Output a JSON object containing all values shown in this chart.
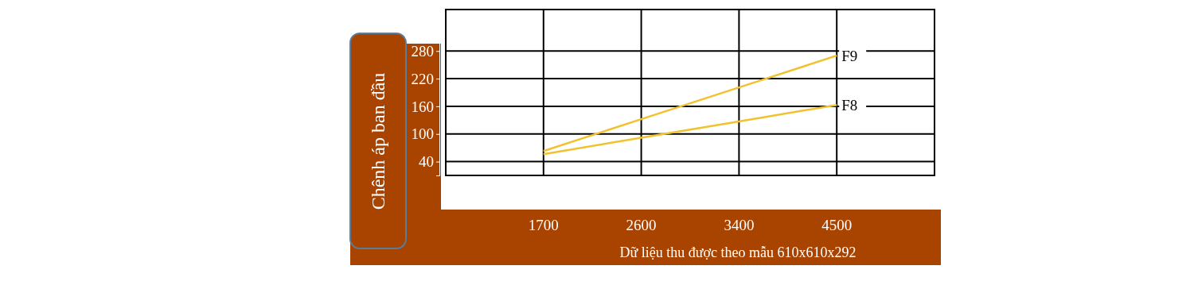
{
  "chart_data": {
    "type": "line",
    "xlabel": "Dữ liệu thu được theo mẫu 610x610x292",
    "ylabel": "Chênh áp ban đầu",
    "categories": [
      "1700",
      "2600",
      "3400",
      "4500"
    ],
    "series": [
      {
        "name": "F9",
        "color": "#f2c12e",
        "values": [
          63,
          132,
          201,
          270
        ]
      },
      {
        "name": "F8",
        "color": "#f2c12e",
        "values": [
          56,
          92,
          127,
          163
        ]
      }
    ],
    "ylim": [
      10,
      370
    ],
    "yticks": [
      40,
      100,
      160,
      220,
      280
    ],
    "grid": true,
    "legend": false,
    "marker": "none",
    "line_style": "solid"
  }
}
